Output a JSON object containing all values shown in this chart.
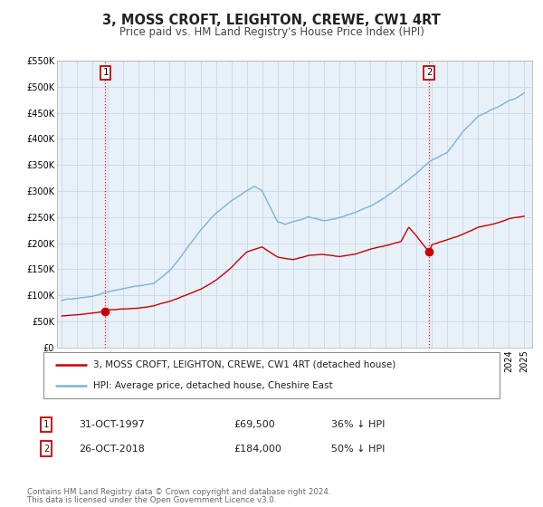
{
  "title": "3, MOSS CROFT, LEIGHTON, CREWE, CW1 4RT",
  "subtitle": "Price paid vs. HM Land Registry's House Price Index (HPI)",
  "ylim": [
    0,
    550000
  ],
  "xlim_start": 1994.7,
  "xlim_end": 2025.5,
  "ytick_values": [
    0,
    50000,
    100000,
    150000,
    200000,
    250000,
    300000,
    350000,
    400000,
    450000,
    500000,
    550000
  ],
  "ytick_labels": [
    "£0",
    "£50K",
    "£100K",
    "£150K",
    "£200K",
    "£250K",
    "£300K",
    "£350K",
    "£400K",
    "£450K",
    "£500K",
    "£550K"
  ],
  "xtick_years": [
    1995,
    1996,
    1997,
    1998,
    1999,
    2000,
    2001,
    2002,
    2003,
    2004,
    2005,
    2006,
    2007,
    2008,
    2009,
    2010,
    2011,
    2012,
    2013,
    2014,
    2015,
    2016,
    2017,
    2018,
    2019,
    2020,
    2021,
    2022,
    2023,
    2024,
    2025
  ],
  "sale1_x": 1997.83,
  "sale1_y": 69500,
  "sale2_x": 2018.82,
  "sale2_y": 184000,
  "sale1_label": "1",
  "sale2_label": "2",
  "hpi_color": "#7ab4d8",
  "price_color": "#cc0000",
  "marker_color": "#cc0000",
  "vline_color": "#cc0000",
  "grid_color": "#c8d8e8",
  "plot_bg_color": "#e8f0f8",
  "bg_color": "#ffffff",
  "legend_label_price": "3, MOSS CROFT, LEIGHTON, CREWE, CW1 4RT (detached house)",
  "legend_label_hpi": "HPI: Average price, detached house, Cheshire East",
  "table_row1": [
    "1",
    "31-OCT-1997",
    "£69,500",
    "36% ↓ HPI"
  ],
  "table_row2": [
    "2",
    "26-OCT-2018",
    "£184,000",
    "50% ↓ HPI"
  ],
  "footnote1": "Contains HM Land Registry data © Crown copyright and database right 2024.",
  "footnote2": "This data is licensed under the Open Government Licence v3.0.",
  "hpi_key_years": [
    1995,
    1996,
    1997,
    1998,
    1999,
    2000,
    2001,
    2002,
    2003,
    2004,
    2005,
    2006,
    2007,
    2007.5,
    2008,
    2009,
    2009.5,
    2010,
    2011,
    2012,
    2013,
    2014,
    2015,
    2016,
    2017,
    2018,
    2019,
    2020,
    2021,
    2022,
    2023,
    2024,
    2024.5,
    2025
  ],
  "hpi_key_vals": [
    90000,
    95000,
    100000,
    108000,
    115000,
    120000,
    125000,
    148000,
    185000,
    225000,
    258000,
    282000,
    300000,
    308000,
    300000,
    240000,
    235000,
    240000,
    248000,
    242000,
    248000,
    258000,
    272000,
    290000,
    312000,
    335000,
    360000,
    375000,
    415000,
    445000,
    460000,
    475000,
    480000,
    490000
  ],
  "price_key_years": [
    1995,
    1996,
    1997,
    1997.83,
    1998,
    1999,
    2000,
    2001,
    2002,
    2003,
    2004,
    2005,
    2006,
    2007,
    2008,
    2009,
    2010,
    2011,
    2012,
    2013,
    2014,
    2015,
    2016,
    2017,
    2017.5,
    2018,
    2018.82,
    2019,
    2020,
    2021,
    2022,
    2023,
    2024,
    2025
  ],
  "price_key_vals": [
    60000,
    63000,
    67000,
    69500,
    72000,
    74000,
    76000,
    80000,
    88000,
    100000,
    112000,
    130000,
    155000,
    185000,
    195000,
    175000,
    170000,
    178000,
    180000,
    176000,
    180000,
    190000,
    197000,
    205000,
    232000,
    215000,
    184000,
    198000,
    208000,
    218000,
    232000,
    238000,
    248000,
    252000
  ]
}
